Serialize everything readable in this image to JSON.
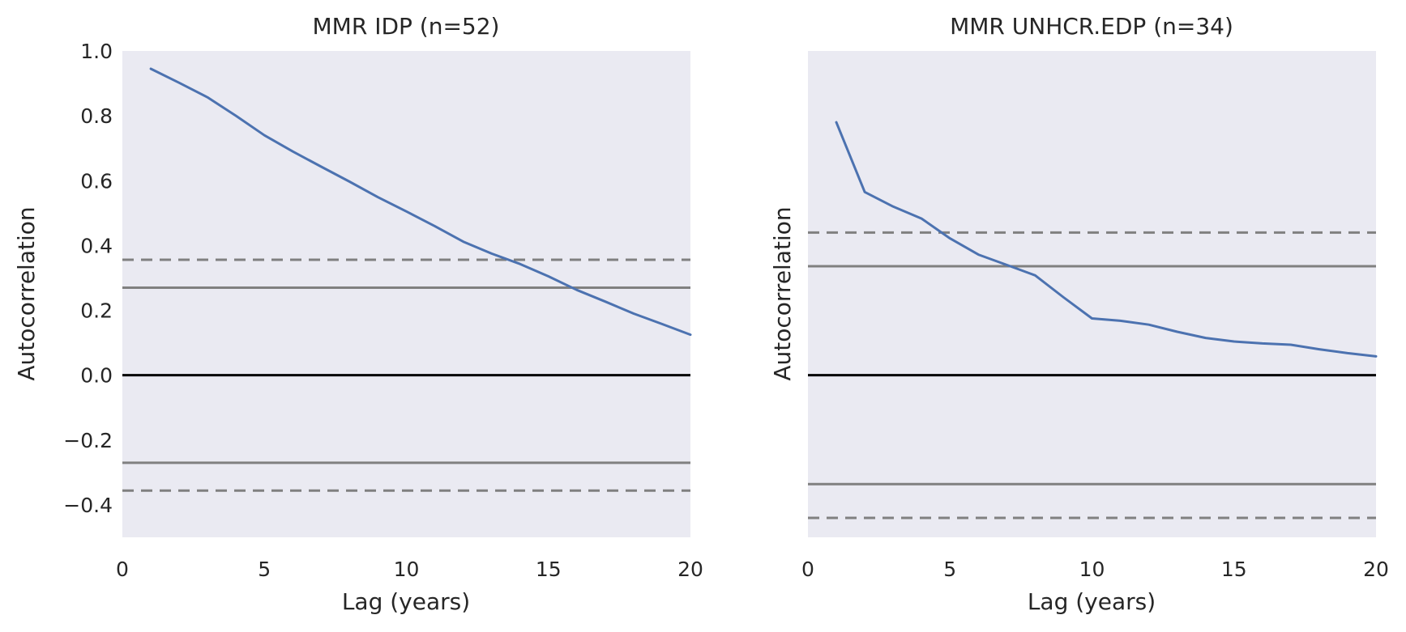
{
  "chart_data": [
    {
      "type": "line",
      "title": "MMR IDP (n=52)",
      "xlabel": "Lag (years)",
      "ylabel": "Autocorrelation",
      "xlim": [
        0,
        20
      ],
      "ylim": [
        -0.5,
        1.0
      ],
      "xticks": [
        0,
        5,
        10,
        15,
        20
      ],
      "xtick_labels": [
        "0",
        "5",
        "10",
        "15",
        "20"
      ],
      "yticks": [
        -0.4,
        -0.2,
        0.0,
        0.2,
        0.4,
        0.6,
        0.8,
        1.0
      ],
      "ytick_labels": [
        "−0.4",
        "−0.2",
        "0.0",
        "0.2",
        "0.4",
        "0.6",
        "0.8",
        "1.0"
      ],
      "grid": false,
      "x": [
        1,
        2,
        3,
        4,
        5,
        6,
        7,
        8,
        9,
        10,
        11,
        12,
        13,
        14,
        15,
        16,
        17,
        18,
        19,
        20
      ],
      "series": [
        {
          "values": [
            0.945,
            0.902,
            0.857,
            0.8,
            0.74,
            0.69,
            0.643,
            0.597,
            0.549,
            0.505,
            0.46,
            0.412,
            0.375,
            0.343,
            0.305,
            0.263,
            0.227,
            0.19,
            0.158,
            0.125
          ],
          "color": "#4c72b0"
        }
      ],
      "hlines": [
        {
          "y": 0.0,
          "style": "solid",
          "color": "#000000"
        },
        {
          "y": 0.27,
          "style": "solid",
          "color": "#808080"
        },
        {
          "y": -0.27,
          "style": "solid",
          "color": "#808080"
        },
        {
          "y": 0.356,
          "style": "dashed",
          "color": "#808080"
        },
        {
          "y": -0.356,
          "style": "dashed",
          "color": "#808080"
        }
      ]
    },
    {
      "type": "line",
      "title": "MMR UNHCR.EDP (n=34)",
      "xlabel": "Lag (years)",
      "ylabel": "Autocorrelation",
      "xlim": [
        0,
        20
      ],
      "ylim": [
        -0.5,
        1.0
      ],
      "xticks": [
        0,
        5,
        10,
        15,
        20
      ],
      "xtick_labels": [
        "0",
        "5",
        "10",
        "15",
        "20"
      ],
      "yticks": [],
      "ytick_labels": [],
      "shared_y": true,
      "grid": false,
      "x": [
        1,
        2,
        3,
        4,
        5,
        6,
        7,
        8,
        9,
        10,
        11,
        12,
        13,
        14,
        15,
        16,
        17,
        18,
        19,
        20
      ],
      "series": [
        {
          "values": [
            0.78,
            0.565,
            0.52,
            0.483,
            0.422,
            0.372,
            0.34,
            0.308,
            0.24,
            0.175,
            0.168,
            0.156,
            0.134,
            0.115,
            0.104,
            0.098,
            0.094,
            0.08,
            0.068,
            0.058
          ],
          "color": "#4c72b0"
        }
      ],
      "hlines": [
        {
          "y": 0.0,
          "style": "solid",
          "color": "#000000"
        },
        {
          "y": 0.336,
          "style": "solid",
          "color": "#808080"
        },
        {
          "y": -0.336,
          "style": "solid",
          "color": "#808080"
        },
        {
          "y": 0.44,
          "style": "dashed",
          "color": "#808080"
        },
        {
          "y": -0.44,
          "style": "dashed",
          "color": "#808080"
        }
      ]
    }
  ]
}
